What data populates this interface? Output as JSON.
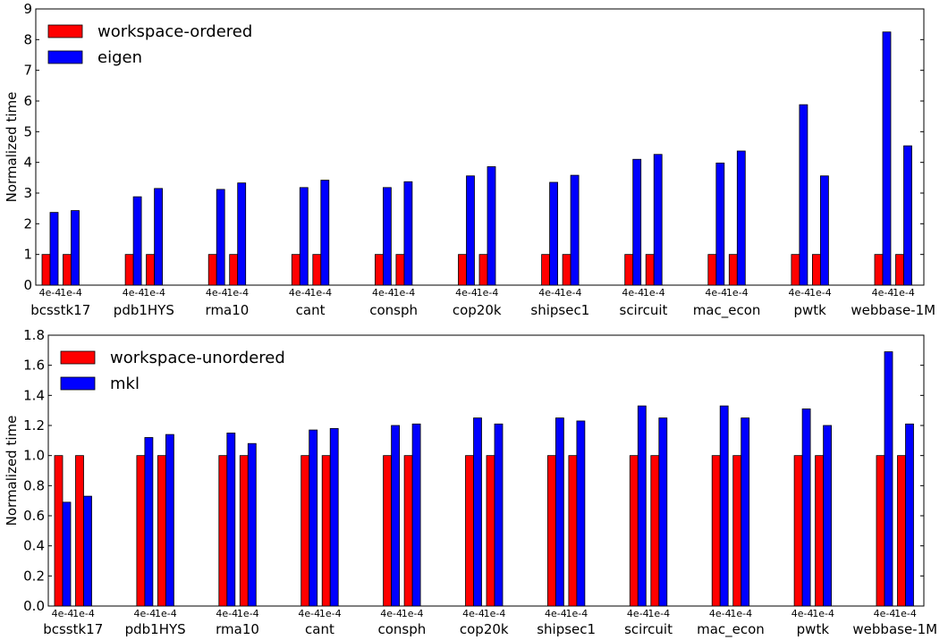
{
  "chart_data": [
    {
      "type": "bar",
      "ylabel": "Normalized time",
      "ylim": [
        0,
        9
      ],
      "yticks": [
        "0",
        "1",
        "2",
        "3",
        "4",
        "5",
        "6",
        "7",
        "8",
        "9"
      ],
      "groups": [
        "bcsstk17",
        "pdb1HYS",
        "rma10",
        "cant",
        "consph",
        "cop20k",
        "shipsec1",
        "scircuit",
        "mac_econ",
        "pwtk",
        "webbase-1M"
      ],
      "subgroups": [
        "4e-4",
        "1e-4"
      ],
      "legend_position": "top-left",
      "series": [
        {
          "name": "workspace-ordered",
          "color": "#ff0000",
          "values": [
            [
              1,
              1
            ],
            [
              1,
              1
            ],
            [
              1,
              1
            ],
            [
              1,
              1
            ],
            [
              1,
              1
            ],
            [
              1,
              1
            ],
            [
              1,
              1
            ],
            [
              1,
              1
            ],
            [
              1,
              1
            ],
            [
              1,
              1
            ],
            [
              1,
              1
            ]
          ]
        },
        {
          "name": "eigen",
          "color": "#0000ff",
          "values": [
            [
              2.37,
              2.43
            ],
            [
              2.88,
              3.15
            ],
            [
              3.12,
              3.33
            ],
            [
              3.18,
              3.42
            ],
            [
              3.18,
              3.37
            ],
            [
              3.56,
              3.86
            ],
            [
              3.35,
              3.58
            ],
            [
              4.1,
              4.26
            ],
            [
              3.98,
              4.37
            ],
            [
              5.88,
              3.56
            ],
            [
              8.25,
              4.54
            ]
          ]
        }
      ]
    },
    {
      "type": "bar",
      "ylabel": "Normalized time",
      "ylim": [
        0,
        1.8
      ],
      "yticks": [
        "0.0",
        "0.2",
        "0.4",
        "0.6",
        "0.8",
        "1.0",
        "1.2",
        "1.4",
        "1.6",
        "1.8"
      ],
      "groups": [
        "bcsstk17",
        "pdb1HYS",
        "rma10",
        "cant",
        "consph",
        "cop20k",
        "shipsec1",
        "scircuit",
        "mac_econ",
        "pwtk",
        "webbase-1M"
      ],
      "subgroups": [
        "4e-4",
        "1e-4"
      ],
      "legend_position": "top-left",
      "series": [
        {
          "name": "workspace-unordered",
          "color": "#ff0000",
          "values": [
            [
              1,
              1
            ],
            [
              1,
              1
            ],
            [
              1,
              1
            ],
            [
              1,
              1
            ],
            [
              1,
              1
            ],
            [
              1,
              1
            ],
            [
              1,
              1
            ],
            [
              1,
              1
            ],
            [
              1,
              1
            ],
            [
              1,
              1
            ],
            [
              1,
              1
            ]
          ]
        },
        {
          "name": "mkl",
          "color": "#0000ff",
          "values": [
            [
              0.69,
              0.73
            ],
            [
              1.12,
              1.14
            ],
            [
              1.15,
              1.08
            ],
            [
              1.17,
              1.18
            ],
            [
              1.2,
              1.21
            ],
            [
              1.25,
              1.21
            ],
            [
              1.25,
              1.23
            ],
            [
              1.33,
              1.25
            ],
            [
              1.33,
              1.25
            ],
            [
              1.31,
              1.2
            ],
            [
              1.69,
              1.21
            ]
          ]
        }
      ]
    }
  ]
}
